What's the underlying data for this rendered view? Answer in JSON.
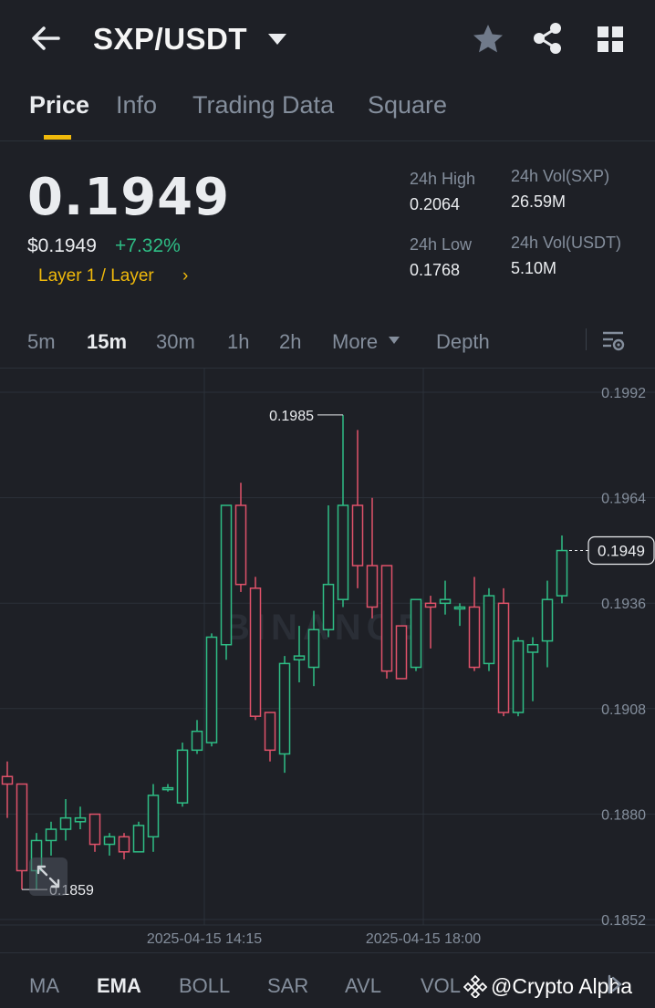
{
  "header": {
    "pair": "SXP/USDT"
  },
  "tabs": [
    {
      "label": "Price"
    },
    {
      "label": "Info"
    },
    {
      "label": "Trading Data"
    },
    {
      "label": "Square"
    }
  ],
  "ticker": {
    "last_price": "0.1949",
    "usd_price": "$0.1949",
    "change": "+7.32%",
    "tag": "Layer 1 / Layer",
    "tag_chevron": "›",
    "stats": {
      "high_label": "24h High",
      "high_value": "0.2064",
      "low_label": "24h Low",
      "low_value": "0.1768",
      "vol_base_label": "24h Vol(SXP)",
      "vol_base_value": "26.59M",
      "vol_quote_label": "24h Vol(USDT)",
      "vol_quote_value": "5.10M"
    }
  },
  "intervals": [
    {
      "label": "5m"
    },
    {
      "label": "15m"
    },
    {
      "label": "30m"
    },
    {
      "label": "1h"
    },
    {
      "label": "2h"
    },
    {
      "label": "More"
    },
    {
      "label": "Depth"
    }
  ],
  "chart_data": {
    "type": "candlestick",
    "interval": "15m",
    "y_axis_ticks": [
      "0.1992",
      "0.1964",
      "0.1936",
      "0.1908",
      "0.1880",
      "0.1852"
    ],
    "ylim": [
      0.1852,
      0.1992
    ],
    "x_axis_ticks": [
      {
        "label": "2025-04-15 14:15",
        "index": 13.5
      },
      {
        "label": "2025-04-15 18:00",
        "index": 28.5
      }
    ],
    "last_price_label": "0.1949",
    "high_marker": {
      "label": "0.1985",
      "value": 0.1985,
      "index": 23
    },
    "low_marker": {
      "label": "0.1859",
      "value": 0.1859,
      "index": 1
    },
    "watermark": "BINANCE",
    "up_color": "#2ebd85",
    "down_color": "#e0526a",
    "candles": [
      {
        "o": 0.1889,
        "h": 0.1893,
        "l": 0.1878,
        "c": 0.1887
      },
      {
        "o": 0.1887,
        "h": 0.1887,
        "l": 0.1859,
        "c": 0.1864
      },
      {
        "o": 0.1864,
        "h": 0.1874,
        "l": 0.1859,
        "c": 0.1872
      },
      {
        "o": 0.1872,
        "h": 0.1877,
        "l": 0.1868,
        "c": 0.1875
      },
      {
        "o": 0.1875,
        "h": 0.1883,
        "l": 0.1872,
        "c": 0.1878
      },
      {
        "o": 0.1877,
        "h": 0.1881,
        "l": 0.1875,
        "c": 0.1878
      },
      {
        "o": 0.1879,
        "h": 0.1879,
        "l": 0.1869,
        "c": 0.1871
      },
      {
        "o": 0.1871,
        "h": 0.1874,
        "l": 0.1868,
        "c": 0.1873
      },
      {
        "o": 0.1873,
        "h": 0.1874,
        "l": 0.1867,
        "c": 0.1869
      },
      {
        "o": 0.1869,
        "h": 0.1877,
        "l": 0.1869,
        "c": 0.1876
      },
      {
        "o": 0.1873,
        "h": 0.1887,
        "l": 0.1869,
        "c": 0.1884
      },
      {
        "o": 0.1886,
        "h": 0.1887,
        "l": 0.1885,
        "c": 0.1886
      },
      {
        "o": 0.1882,
        "h": 0.1898,
        "l": 0.1881,
        "c": 0.1896
      },
      {
        "o": 0.1896,
        "h": 0.1904,
        "l": 0.1895,
        "c": 0.1901
      },
      {
        "o": 0.1898,
        "h": 0.1927,
        "l": 0.1897,
        "c": 0.1926
      },
      {
        "o": 0.1924,
        "h": 0.1961,
        "l": 0.192,
        "c": 0.1961
      },
      {
        "o": 0.1961,
        "h": 0.1967,
        "l": 0.1938,
        "c": 0.194
      },
      {
        "o": 0.1939,
        "h": 0.1942,
        "l": 0.1904,
        "c": 0.1905
      },
      {
        "o": 0.1906,
        "h": 0.1906,
        "l": 0.1893,
        "c": 0.1896
      },
      {
        "o": 0.1895,
        "h": 0.1921,
        "l": 0.189,
        "c": 0.1919
      },
      {
        "o": 0.192,
        "h": 0.1929,
        "l": 0.1914,
        "c": 0.1921
      },
      {
        "o": 0.1918,
        "h": 0.1933,
        "l": 0.1913,
        "c": 0.1928
      },
      {
        "o": 0.1928,
        "h": 0.1961,
        "l": 0.1926,
        "c": 0.194
      },
      {
        "o": 0.1936,
        "h": 0.1985,
        "l": 0.1934,
        "c": 0.1961
      },
      {
        "o": 0.1961,
        "h": 0.1981,
        "l": 0.1939,
        "c": 0.1945
      },
      {
        "o": 0.1945,
        "h": 0.1963,
        "l": 0.1931,
        "c": 0.1934
      },
      {
        "o": 0.1945,
        "h": 0.1945,
        "l": 0.1915,
        "c": 0.1917
      },
      {
        "o": 0.1929,
        "h": 0.1929,
        "l": 0.1915,
        "c": 0.1915
      },
      {
        "o": 0.1918,
        "h": 0.1936,
        "l": 0.1917,
        "c": 0.1936
      },
      {
        "o": 0.1935,
        "h": 0.1937,
        "l": 0.1923,
        "c": 0.1934
      },
      {
        "o": 0.1935,
        "h": 0.1941,
        "l": 0.1932,
        "c": 0.1936
      },
      {
        "o": 0.1934,
        "h": 0.1935,
        "l": 0.1929,
        "c": 0.1934
      },
      {
        "o": 0.1934,
        "h": 0.1942,
        "l": 0.1917,
        "c": 0.1918
      },
      {
        "o": 0.1919,
        "h": 0.1939,
        "l": 0.1917,
        "c": 0.1937
      },
      {
        "o": 0.1935,
        "h": 0.1939,
        "l": 0.1905,
        "c": 0.1906
      },
      {
        "o": 0.1906,
        "h": 0.1926,
        "l": 0.1905,
        "c": 0.1925
      },
      {
        "o": 0.1922,
        "h": 0.1926,
        "l": 0.1909,
        "c": 0.1924
      },
      {
        "o": 0.1925,
        "h": 0.1941,
        "l": 0.1918,
        "c": 0.1936
      },
      {
        "o": 0.1937,
        "h": 0.1953,
        "l": 0.1935,
        "c": 0.1949
      }
    ]
  },
  "indicators": [
    {
      "label": "MA"
    },
    {
      "label": "EMA"
    },
    {
      "label": "BOLL"
    },
    {
      "label": "SAR"
    },
    {
      "label": "AVL"
    },
    {
      "label": "VOL"
    }
  ],
  "credit": "@Crypto Alpha"
}
